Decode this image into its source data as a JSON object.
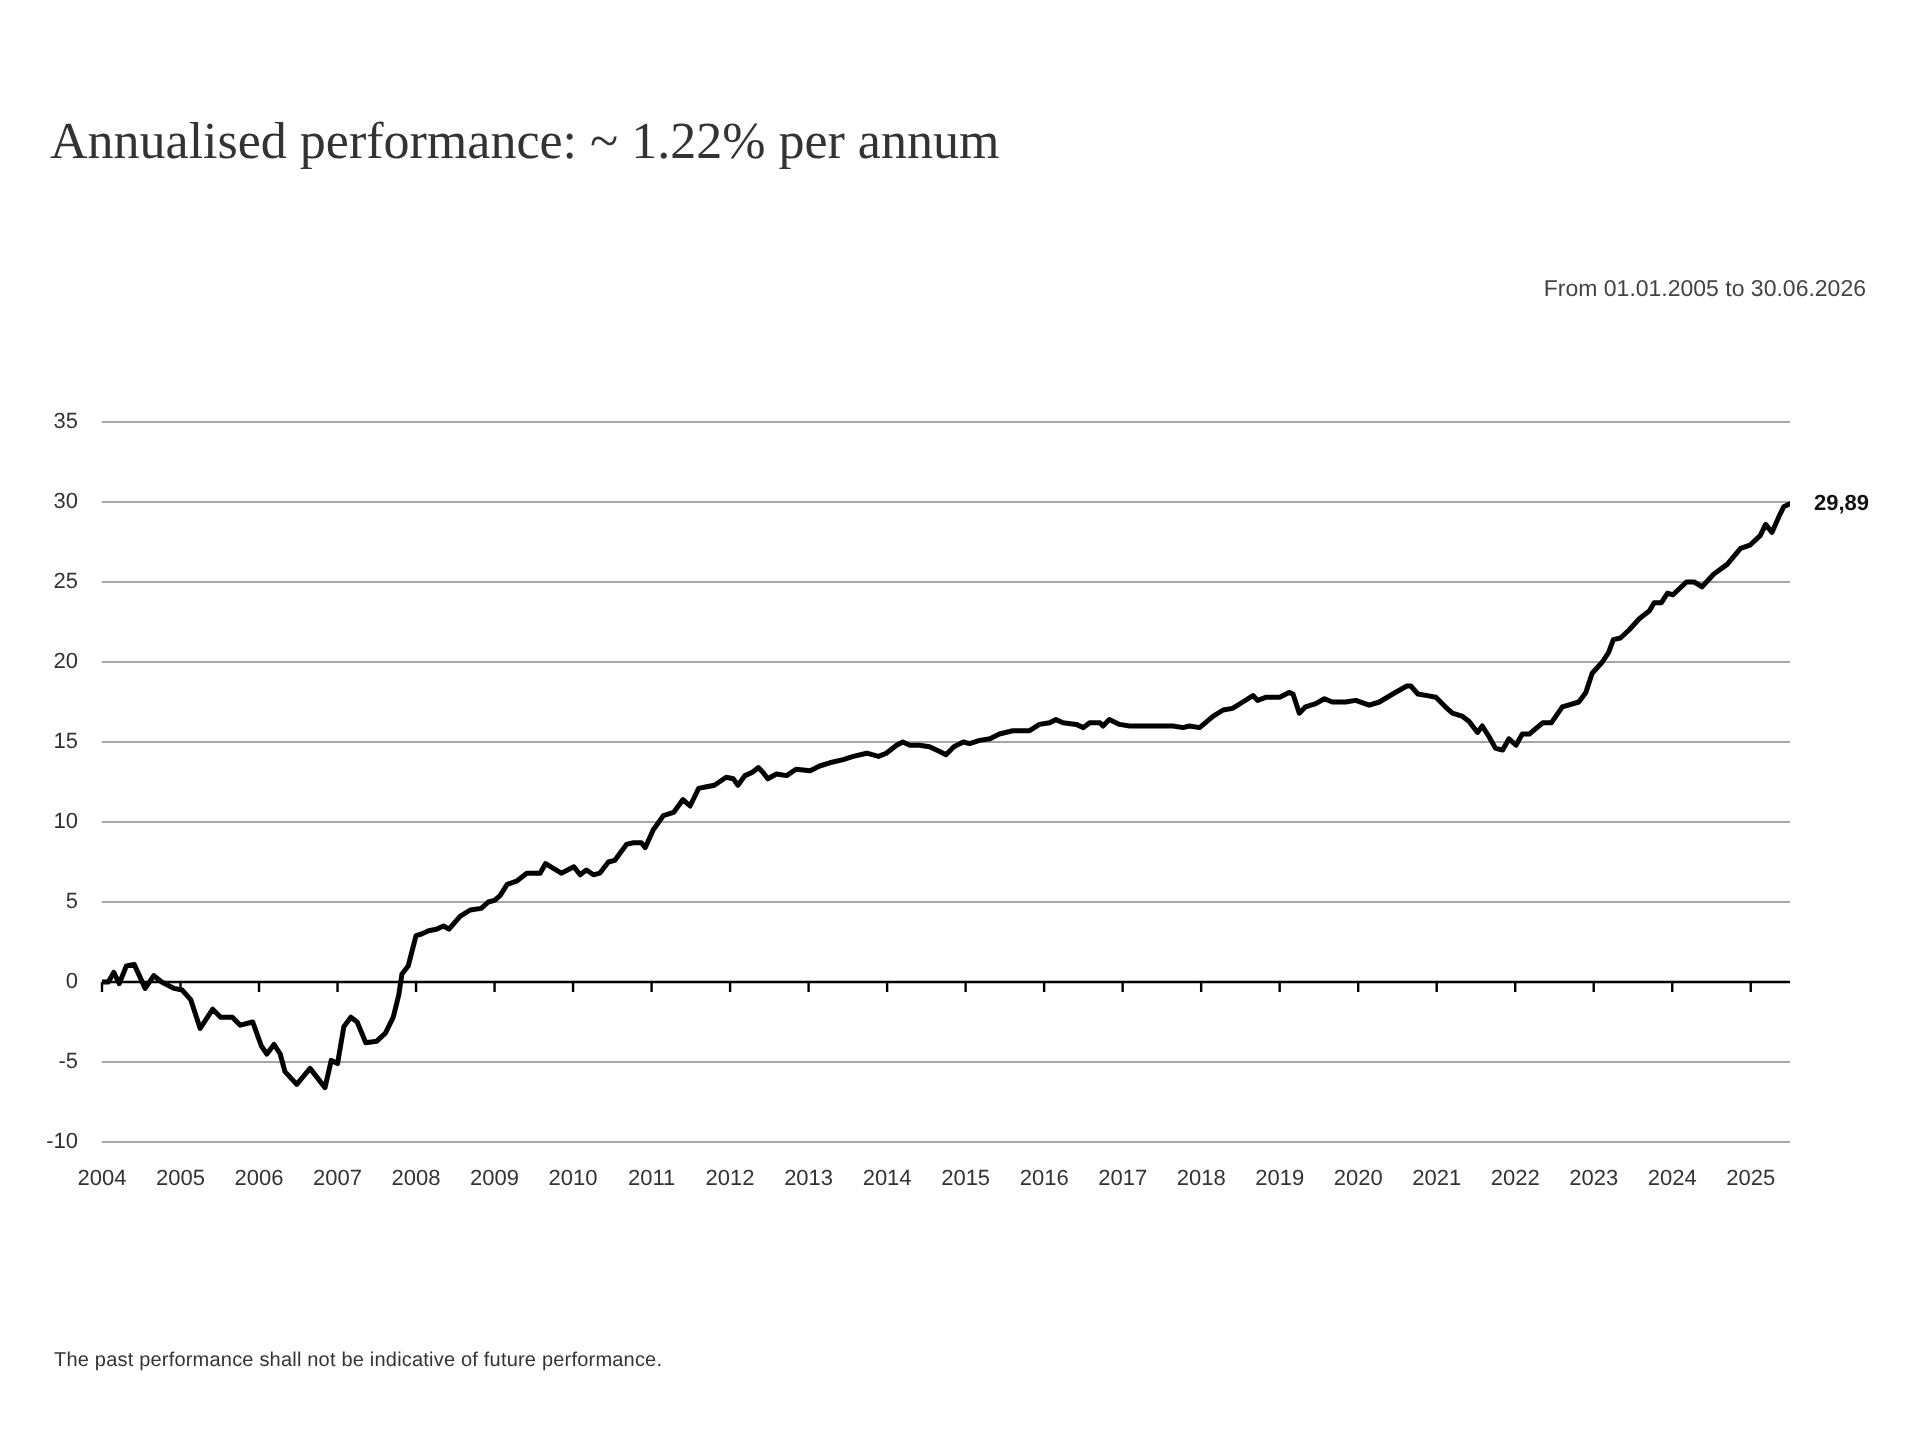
{
  "chart_data": {
    "type": "line",
    "title": "Annualised performance: ~ 1.22% per annum",
    "subtitle": "From 01.01.2005 to 30.06.2026",
    "annotations": [
      "The past performance shall not be indicative of future performance.",
      {
        "text": "29,89",
        "x": 2025.5,
        "y": 29.89
      }
    ],
    "x": [
      2004.0,
      2004.08,
      2004.15,
      2004.22,
      2004.31,
      2004.41,
      2004.55,
      2004.66,
      2004.76,
      2004.92,
      2005.02,
      2005.13,
      2005.25,
      2005.41,
      2005.51,
      2005.66,
      2005.76,
      2005.92,
      2006.03,
      2006.1,
      2006.19,
      2006.27,
      2006.33,
      2006.48,
      2006.65,
      2006.84,
      2006.92,
      2007.0,
      2007.08,
      2007.17,
      2007.25,
      2007.36,
      2007.5,
      2007.61,
      2007.71,
      2007.78,
      2007.82,
      2007.9,
      2008.0,
      2008.07,
      2008.16,
      2008.26,
      2008.35,
      2008.42,
      2008.56,
      2008.69,
      2008.83,
      2008.92,
      2009.0,
      2009.07,
      2009.16,
      2009.28,
      2009.41,
      2009.58,
      2009.65,
      2009.75,
      2009.85,
      2010.01,
      2010.09,
      2010.17,
      2010.26,
      2010.34,
      2010.45,
      2010.53,
      2010.68,
      2010.77,
      2010.87,
      2010.92,
      2011.02,
      2011.15,
      2011.28,
      2011.4,
      2011.49,
      2011.6,
      2011.7,
      2011.8,
      2011.95,
      2012.04,
      2012.1,
      2012.19,
      2012.28,
      2012.36,
      2012.42,
      2012.48,
      2012.59,
      2012.72,
      2012.84,
      2013.02,
      2013.14,
      2013.27,
      2013.44,
      2013.57,
      2013.74,
      2013.89,
      2013.99,
      2014.12,
      2014.2,
      2014.29,
      2014.41,
      2014.54,
      2014.67,
      2014.75,
      2014.85,
      2014.97,
      2015.05,
      2015.18,
      2015.31,
      2015.43,
      2015.6,
      2015.81,
      2015.94,
      2016.07,
      2016.15,
      2016.24,
      2016.41,
      2016.5,
      2016.58,
      2016.71,
      2016.75,
      2016.83,
      2016.96,
      2017.09,
      2017.21,
      2017.38,
      2017.64,
      2017.77,
      2017.85,
      2017.98,
      2018.15,
      2018.28,
      2018.4,
      2018.53,
      2018.66,
      2018.72,
      2018.83,
      2019.0,
      2019.12,
      2019.17,
      2019.25,
      2019.33,
      2019.46,
      2019.57,
      2019.67,
      2019.84,
      2019.97,
      2020.14,
      2020.27,
      2020.44,
      2020.62,
      2020.67,
      2020.76,
      2020.88,
      2020.99,
      2021.11,
      2021.2,
      2021.33,
      2021.41,
      2021.52,
      2021.58,
      2021.67,
      2021.75,
      2021.84,
      2021.92,
      2022.01,
      2022.09,
      2022.18,
      2022.35,
      2022.46,
      2022.6,
      2022.81,
      2022.9,
      2022.98,
      2023.11,
      2023.19,
      2023.25,
      2023.34,
      2023.45,
      2023.58,
      2023.71,
      2023.77,
      2023.86,
      2023.94,
      2024.01,
      2024.18,
      2024.28,
      2024.38,
      2024.53,
      2024.7,
      2024.87,
      2024.99,
      2025.12,
      2025.19,
      2025.27,
      2025.36,
      2025.42,
      2025.5
    ],
    "series": [
      {
        "color": "#000000",
        "values": [
          0,
          0,
          0.6,
          -0.1,
          1.0,
          1.1,
          -0.4,
          0.4,
          0,
          -0.4,
          -0.5,
          -1.1,
          -2.9,
          -1.7,
          -2.2,
          -2.2,
          -2.7,
          -2.5,
          -4.0,
          -4.5,
          -3.9,
          -4.5,
          -5.6,
          -6.4,
          -5.4,
          -6.6,
          -4.9,
          -5.1,
          -2.8,
          -2.2,
          -2.5,
          -3.8,
          -3.7,
          -3.2,
          -2.2,
          -0.8,
          0.5,
          1.0,
          2.9,
          3.0,
          3.2,
          3.3,
          3.5,
          3.3,
          4.1,
          4.5,
          4.6,
          5.0,
          5.1,
          5.4,
          6.1,
          6.3,
          6.8,
          6.8,
          7.4,
          7.1,
          6.8,
          7.2,
          6.7,
          7.0,
          6.7,
          6.8,
          7.5,
          7.6,
          8.6,
          8.7,
          8.7,
          8.4,
          9.5,
          10.4,
          10.6,
          11.4,
          11.0,
          12.1,
          12.2,
          12.3,
          12.8,
          12.7,
          12.3,
          12.9,
          13.1,
          13.4,
          13.1,
          12.7,
          13.0,
          12.9,
          13.3,
          13.2,
          13.5,
          13.7,
          13.9,
          14.1,
          14.3,
          14.1,
          14.3,
          14.8,
          15.0,
          14.8,
          14.8,
          14.7,
          14.4,
          14.2,
          14.7,
          15.0,
          14.9,
          15.1,
          15.2,
          15.5,
          15.7,
          15.7,
          16.1,
          16.2,
          16.4,
          16.2,
          16.1,
          15.9,
          16.2,
          16.2,
          16.0,
          16.4,
          16.1,
          16.0,
          16.0,
          16.0,
          16.0,
          15.9,
          16.0,
          15.9,
          16.6,
          17.0,
          17.1,
          17.5,
          17.9,
          17.6,
          17.8,
          17.8,
          18.1,
          18.0,
          16.8,
          17.2,
          17.4,
          17.7,
          17.5,
          17.5,
          17.6,
          17.3,
          17.5,
          18.0,
          18.5,
          18.5,
          18.0,
          17.9,
          17.8,
          17.2,
          16.8,
          16.6,
          16.3,
          15.6,
          16.0,
          15.3,
          14.6,
          14.5,
          15.2,
          14.8,
          15.5,
          15.5,
          16.2,
          16.2,
          17.2,
          17.5,
          18.1,
          19.3,
          20.0,
          20.6,
          21.4,
          21.5,
          22.0,
          22.7,
          23.2,
          23.7,
          23.7,
          24.3,
          24.2,
          25.0,
          25.0,
          24.7,
          25.5,
          26.1,
          27.1,
          27.3,
          27.9,
          28.6,
          28.1,
          29.1,
          29.7,
          29.89
        ]
      }
    ],
    "xlim": [
      2004,
      2025.5
    ],
    "xticks": [
      2004,
      2005,
      2006,
      2007,
      2008,
      2009,
      2010,
      2011,
      2012,
      2013,
      2014,
      2015,
      2016,
      2017,
      2018,
      2019,
      2020,
      2021,
      2022,
      2023,
      2024,
      2025
    ],
    "ylim": [
      -10,
      35
    ],
    "yticks": [
      -10,
      -5,
      0,
      5,
      10,
      15,
      20,
      25,
      30,
      35
    ],
    "grid": "y",
    "marker": "none",
    "line_style": "solid"
  }
}
